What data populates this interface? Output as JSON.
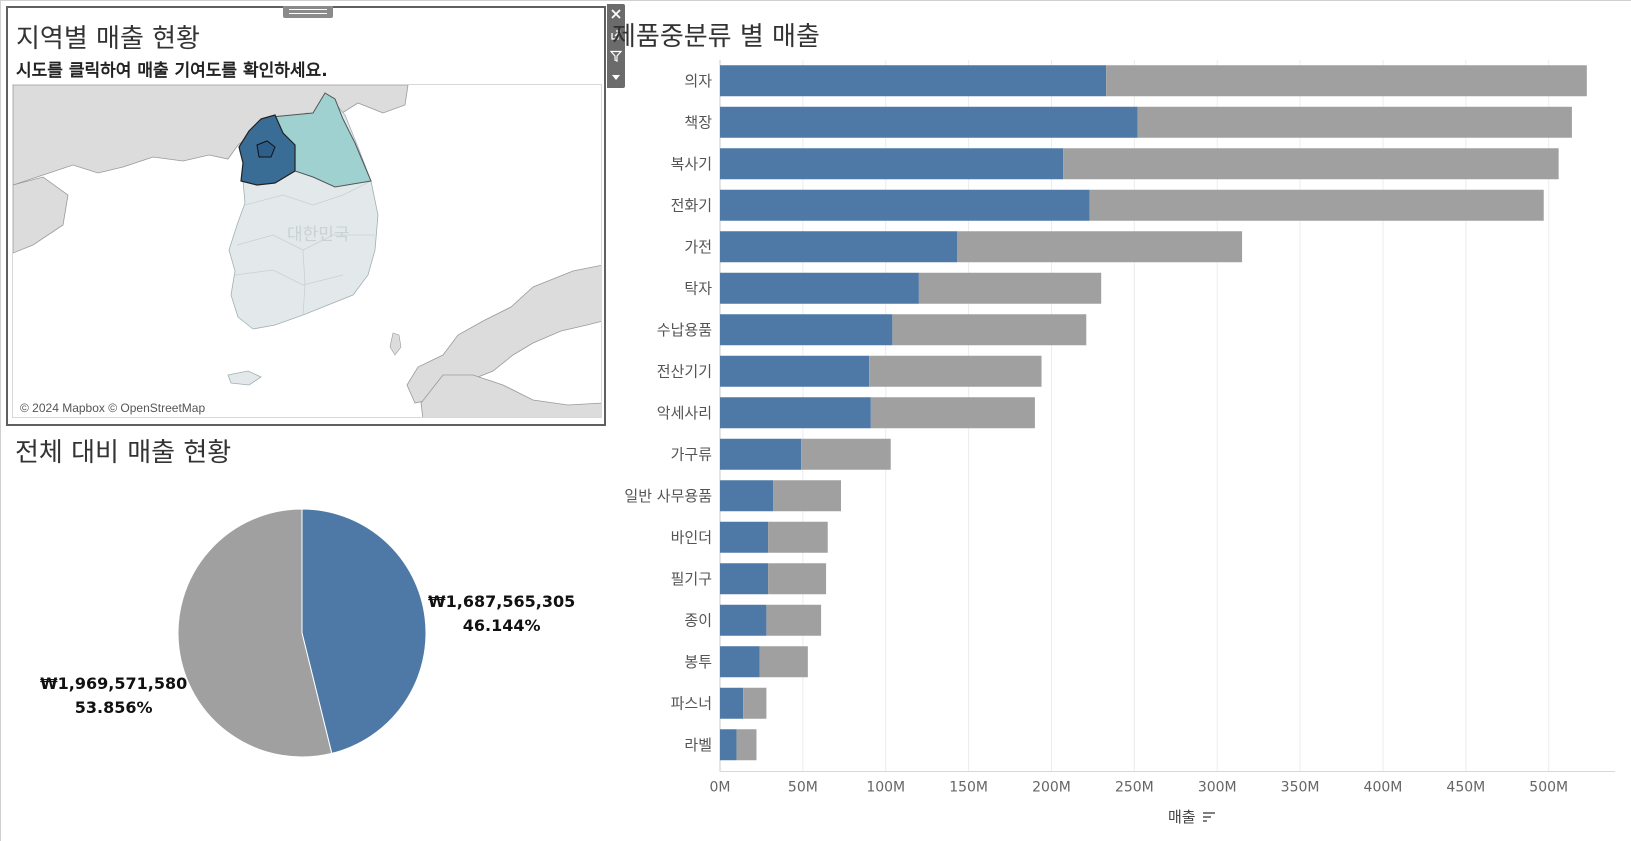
{
  "map_panel": {
    "title": "지역별 매출 현황",
    "subtitle": "시도를 클릭하여 매출 기여도를 확인하세요.",
    "country_label": "대한민국",
    "attribution": "© 2024 Mapbox © OpenStreetMap",
    "highlight_colors": {
      "seoul": "#2d5f8a",
      "gyeonggi": "#3a6d95",
      "gangwon": "#9fd1d1",
      "other": "#e3e9ea",
      "neighbor": "#dcdcdc"
    }
  },
  "toolbar": {
    "icons": [
      "close-icon",
      "popout-icon",
      "filter-icon",
      "dropdown-icon"
    ]
  },
  "pie_panel": {
    "title": "전체 대비 매출 현황",
    "label_selected_value": "₩1,687,565,305",
    "label_selected_pct": "46.144%",
    "label_other_value": "₩1,969,571,580",
    "label_other_pct": "53.856%"
  },
  "bar_panel": {
    "title": "제품중분류 별 매출",
    "axis_title": "매출",
    "sort_icon": "sort-icon"
  },
  "chart_data": [
    {
      "type": "pie",
      "title": "전체 대비 매출 현황",
      "slices": [
        {
          "label": "₩1,687,565,305",
          "value": 1687565305,
          "percent": 46.144,
          "color": "#4e79a7"
        },
        {
          "label": "₩1,969,571,580",
          "value": 1969571580,
          "percent": 53.856,
          "color": "#a0a0a0"
        }
      ]
    },
    {
      "type": "bar",
      "title": "제품중분류 별 매출",
      "xlabel": "매출",
      "ylabel": "",
      "orientation": "horizontal",
      "stacked": true,
      "xlim": [
        0,
        540000000
      ],
      "ticks": [
        {
          "value": 0,
          "label": "0M"
        },
        {
          "value": 50000000,
          "label": "50M"
        },
        {
          "value": 100000000,
          "label": "100M"
        },
        {
          "value": 150000000,
          "label": "150M"
        },
        {
          "value": 200000000,
          "label": "200M"
        },
        {
          "value": 250000000,
          "label": "250M"
        },
        {
          "value": 300000000,
          "label": "300M"
        },
        {
          "value": 350000000,
          "label": "350M"
        },
        {
          "value": 400000000,
          "label": "400M"
        },
        {
          "value": 450000000,
          "label": "450M"
        },
        {
          "value": 500000000,
          "label": "500M"
        }
      ],
      "grid": true,
      "categories": [
        "의자",
        "책장",
        "복사기",
        "전화기",
        "가전",
        "탁자",
        "수납용품",
        "전산기기",
        "악세사리",
        "가구류",
        "일반 사무용품",
        "바인더",
        "필기구",
        "종이",
        "봉투",
        "파스너",
        "라벨"
      ],
      "series": [
        {
          "color": "#4e79a7",
          "values": [
            233000000,
            252000000,
            207000000,
            223000000,
            143000000,
            120000000,
            104000000,
            90000000,
            91000000,
            49000000,
            32000000,
            29000000,
            29000000,
            28000000,
            24000000,
            14000000,
            10000000
          ]
        },
        {
          "color": "#a0a0a0",
          "values": [
            290000000,
            262000000,
            299000000,
            274000000,
            172000000,
            110000000,
            117000000,
            104000000,
            99000000,
            54000000,
            41000000,
            36000000,
            35000000,
            33000000,
            29000000,
            14000000,
            12000000
          ]
        }
      ]
    }
  ]
}
